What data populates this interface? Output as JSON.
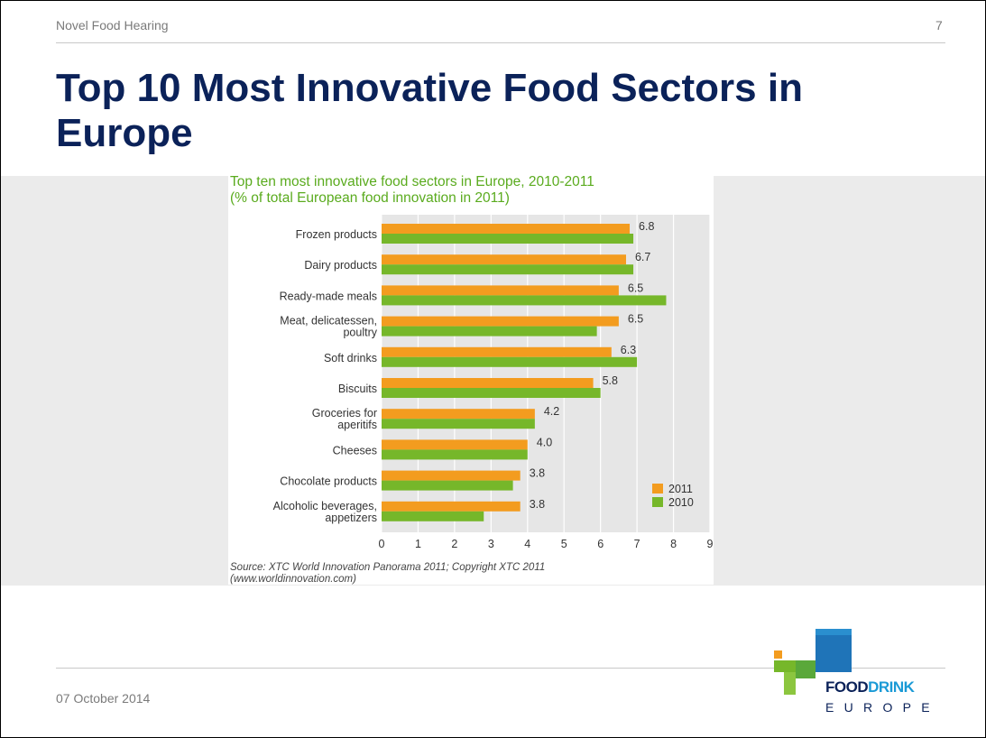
{
  "header": {
    "title": "Novel Food Hearing",
    "page_number": "7"
  },
  "slide": {
    "title": "Top 10 Most Innovative Food Sectors in Europe"
  },
  "footer": {
    "date": "07 October 2014"
  },
  "logo": {
    "word1": "FOOD",
    "word2": "DRINK",
    "word3": "EUROPE"
  },
  "colors": {
    "title": "#0b2259",
    "series_2011": "#f39c1f",
    "series_2010": "#76b72a",
    "chart_title": "#5aab1e"
  },
  "chart_data": {
    "type": "bar",
    "orientation": "horizontal",
    "title": "Top ten most innovative food sectors in Europe, 2010-2011",
    "subtitle": "(% of total European food innovation in 2011)",
    "categories": [
      "Frozen products",
      "Dairy products",
      "Ready-made meals",
      "Meat, delicatessen,\npoultry",
      "Soft drinks",
      "Biscuits",
      "Groceries for\naperitifs",
      "Cheeses",
      "Chocolate products",
      "Alcoholic beverages,\nappetizers"
    ],
    "series": [
      {
        "name": "2011",
        "values": [
          6.8,
          6.7,
          6.5,
          6.5,
          6.3,
          5.8,
          4.2,
          4.0,
          3.8,
          3.8
        ]
      },
      {
        "name": "2010",
        "values": [
          6.9,
          6.9,
          7.8,
          5.9,
          7.0,
          6.0,
          4.2,
          4.0,
          3.6,
          2.8
        ]
      }
    ],
    "data_labels": [
      "6.8",
      "6.7",
      "6.5",
      "6.5",
      "6.3",
      "5.8",
      "4.2",
      "4.0",
      "3.8",
      "3.8"
    ],
    "x_ticks": [
      "0",
      "1",
      "2",
      "3",
      "4",
      "5",
      "6",
      "7",
      "8",
      "9"
    ],
    "xlim": [
      0,
      9
    ],
    "grid": true,
    "legend_position": "bottom-right",
    "source": "Source: XTC World Innovation Panorama 2011; Copyright XTC 2011",
    "source_url": "(www.worldinnovation.com)"
  }
}
